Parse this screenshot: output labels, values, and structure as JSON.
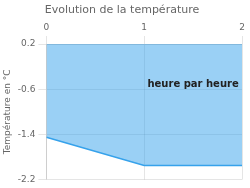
{
  "chart_data": {
    "type": "area",
    "title": "Evolution de la température",
    "ylabel": "Température en °C",
    "annotations": [
      {
        "text": "heure par heure",
        "x": 1.5,
        "y": -0.52
      }
    ],
    "x": [
      0,
      1,
      2
    ],
    "values": [
      -1.45,
      -1.95,
      -1.95
    ],
    "xlim": [
      0,
      2
    ],
    "ylim": [
      -2.2,
      0.2
    ],
    "xticks": [
      0,
      1,
      2
    ],
    "yticks": [
      0.2,
      -0.6,
      -1.4,
      -2.2
    ],
    "grid": true
  }
}
